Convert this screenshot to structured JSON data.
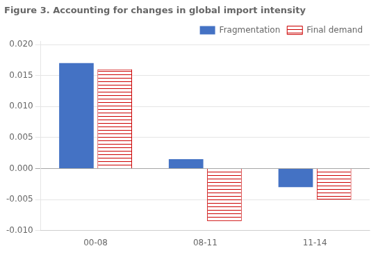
{
  "chart_data": {
    "type": "bar",
    "title": "Figure 3. Accounting for changes in global import intensity",
    "categories": [
      "00-08",
      "08-11",
      "11-14"
    ],
    "series": [
      {
        "name": "Fragmentation",
        "color": "#4472C4",
        "values": [
          0.017,
          0.0015,
          -0.003
        ]
      },
      {
        "name": "Final demand",
        "color": "#CC0000",
        "values": [
          0.016,
          -0.0085,
          -0.005
        ]
      }
    ],
    "ylim": [
      -0.01,
      0.0205
    ],
    "yticks": [
      {
        "value": -0.01,
        "label": "-0.010"
      },
      {
        "value": -0.005,
        "label": "-0.005"
      },
      {
        "value": 0.0,
        "label": "0.000"
      },
      {
        "value": 0.005,
        "label": "0.005"
      },
      {
        "value": 0.01,
        "label": "0.010"
      },
      {
        "value": 0.015,
        "label": "0.015"
      },
      {
        "value": 0.02,
        "label": "0.020"
      }
    ],
    "grid": true,
    "legend": "upper right"
  }
}
